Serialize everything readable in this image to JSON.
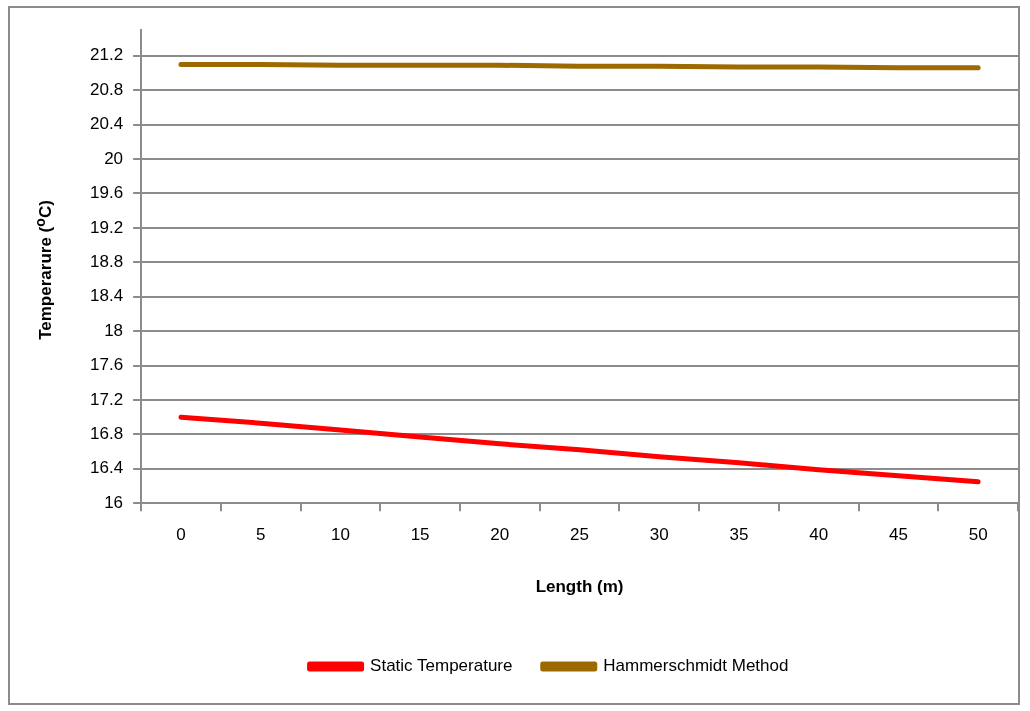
{
  "chart_data": {
    "type": "line",
    "xlabel": "Length (m)",
    "ylabel": "Temperarure ($^{o}$C)",
    "categories": [
      "0",
      "5",
      "10",
      "15",
      "20",
      "25",
      "30",
      "35",
      "40",
      "45",
      "50"
    ],
    "series": [
      {
        "name": "Static Temperature",
        "color": "#ff0000",
        "values": [
          17.0,
          16.93,
          16.85,
          16.77,
          16.69,
          16.62,
          16.54,
          16.47,
          16.39,
          16.32,
          16.25
        ]
      },
      {
        "name": "Hammerschmidt Method",
        "color": "#9c6a00",
        "values": [
          21.1,
          21.1,
          21.09,
          21.09,
          21.09,
          21.08,
          21.08,
          21.07,
          21.07,
          21.06,
          21.06
        ]
      }
    ],
    "ylim": [
      16,
      21.5
    ],
    "yticks": [
      16,
      16.4,
      16.8,
      17.2,
      17.6,
      18,
      18.4,
      18.8,
      19.2,
      19.6,
      20,
      20.4,
      20.8,
      21.2
    ],
    "grid": "y",
    "legend": "bottom",
    "marker": "none",
    "line_style": "solid"
  }
}
